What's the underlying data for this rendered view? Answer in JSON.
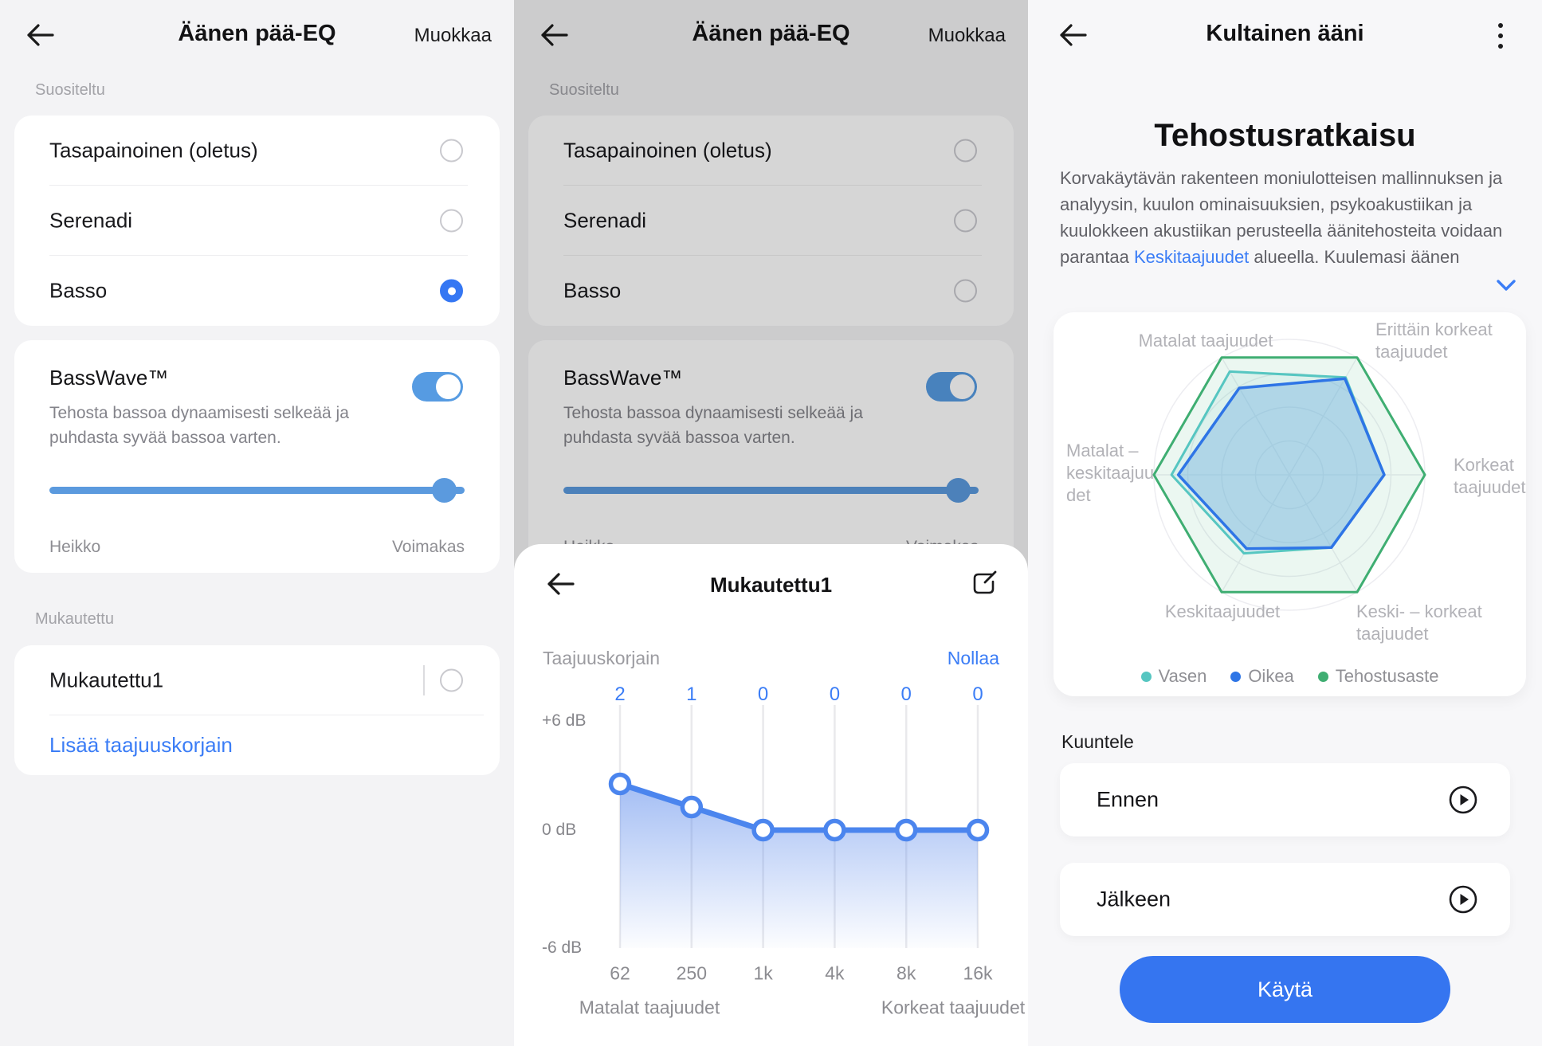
{
  "colors": {
    "accent_blue": "#3575f0",
    "link_blue": "#3b7df6",
    "control_blue": "#5b9ade",
    "eq_line_blue": "#4b85ee",
    "radar_left_teal": "#56c6c1",
    "radar_right_blue": "#2e75e6",
    "radar_boost_green": "#3fae72",
    "dim_overlay": "rgba(0,0,0,0.16)"
  },
  "eq_screen": {
    "title": "Äänen pää-EQ",
    "edit_action": "Muokkaa",
    "section_recommended": "Suositeltu",
    "presets": [
      {
        "label": "Tasapainoinen (oletus)",
        "selected": false
      },
      {
        "label": "Serenadi",
        "selected": false
      },
      {
        "label": "Basso",
        "selected": true
      }
    ],
    "basswave": {
      "title": "BassWave™",
      "description": "Tehosta bassoa dynaamisesti selkeää ja puhdasta syvää bassoa varten.",
      "toggle_on": true,
      "slider_min_label": "Heikko",
      "slider_max_label": "Voimakas"
    },
    "section_custom": "Mukautettu",
    "custom_preset_label": "Mukautettu1",
    "add_equalizer_label": "Lisää taajuuskorjain"
  },
  "custom_eq_modal": {
    "title": "Mukautettu1",
    "eq_label": "Taajuuskorjain",
    "reset_label": "Nollaa"
  },
  "golden_sound": {
    "title": "Kultainen ääni",
    "heading": "Tehostusratkaisu",
    "desc_before": "Korvakäytävän rakenteen moniulotteisen mallinnuksen ja analyysin, kuulon ominaisuuksien, psykoakustiikan ja kuulokkeen akustiikan perusteella äänitehosteita voidaan parantaa ",
    "desc_link": "Keskitaajuudet",
    "desc_after": " alueella. Kuulemasi äänen",
    "listen_label": "Kuuntele",
    "before_label": "Ennen",
    "after_label": "Jälkeen",
    "apply_label": "Käytä"
  },
  "chart_data": [
    {
      "type": "line",
      "title": "Taajuuskorjain",
      "categories": [
        "62",
        "250",
        "1k",
        "4k",
        "8k",
        "16k"
      ],
      "values": [
        2,
        1,
        0,
        0,
        0,
        0
      ],
      "ylim": [
        -6,
        6
      ],
      "ytick_labels": [
        "+6 dB",
        "0 dB",
        "-6 dB"
      ],
      "xlabel_left": "Matalat taajuudet",
      "xlabel_right": "Korkeat taajuudet",
      "line_color": "#4b85ee",
      "grid": "vertical"
    },
    {
      "type": "radar",
      "categories": [
        "Matalat taajuudet",
        "Erittäin korkeat taajuudet",
        "Korkeat taajuudet",
        "Keski- – korkeat taajuudet",
        "Keskitaajuudet",
        "Matalat – keskitaajuudet"
      ],
      "rlim": [
        0,
        1
      ],
      "legend_position": "bottom",
      "series": [
        {
          "name": "Vasen",
          "color": "#56c6c1",
          "fill": "rgba(86,198,193,0.10)",
          "values": [
            0.88,
            0.83,
            0.7,
            0.62,
            0.67,
            0.87
          ]
        },
        {
          "name": "Oikea",
          "color": "#2e75e6",
          "fill": "rgba(110,175,225,0.40)",
          "values": [
            0.74,
            0.82,
            0.7,
            0.62,
            0.63,
            0.82
          ]
        },
        {
          "name": "Tehostusaste",
          "color": "#3fae72",
          "fill": "rgba(63,174,114,0.10)",
          "values": [
            1,
            1,
            1,
            1,
            1,
            1
          ]
        }
      ]
    }
  ]
}
